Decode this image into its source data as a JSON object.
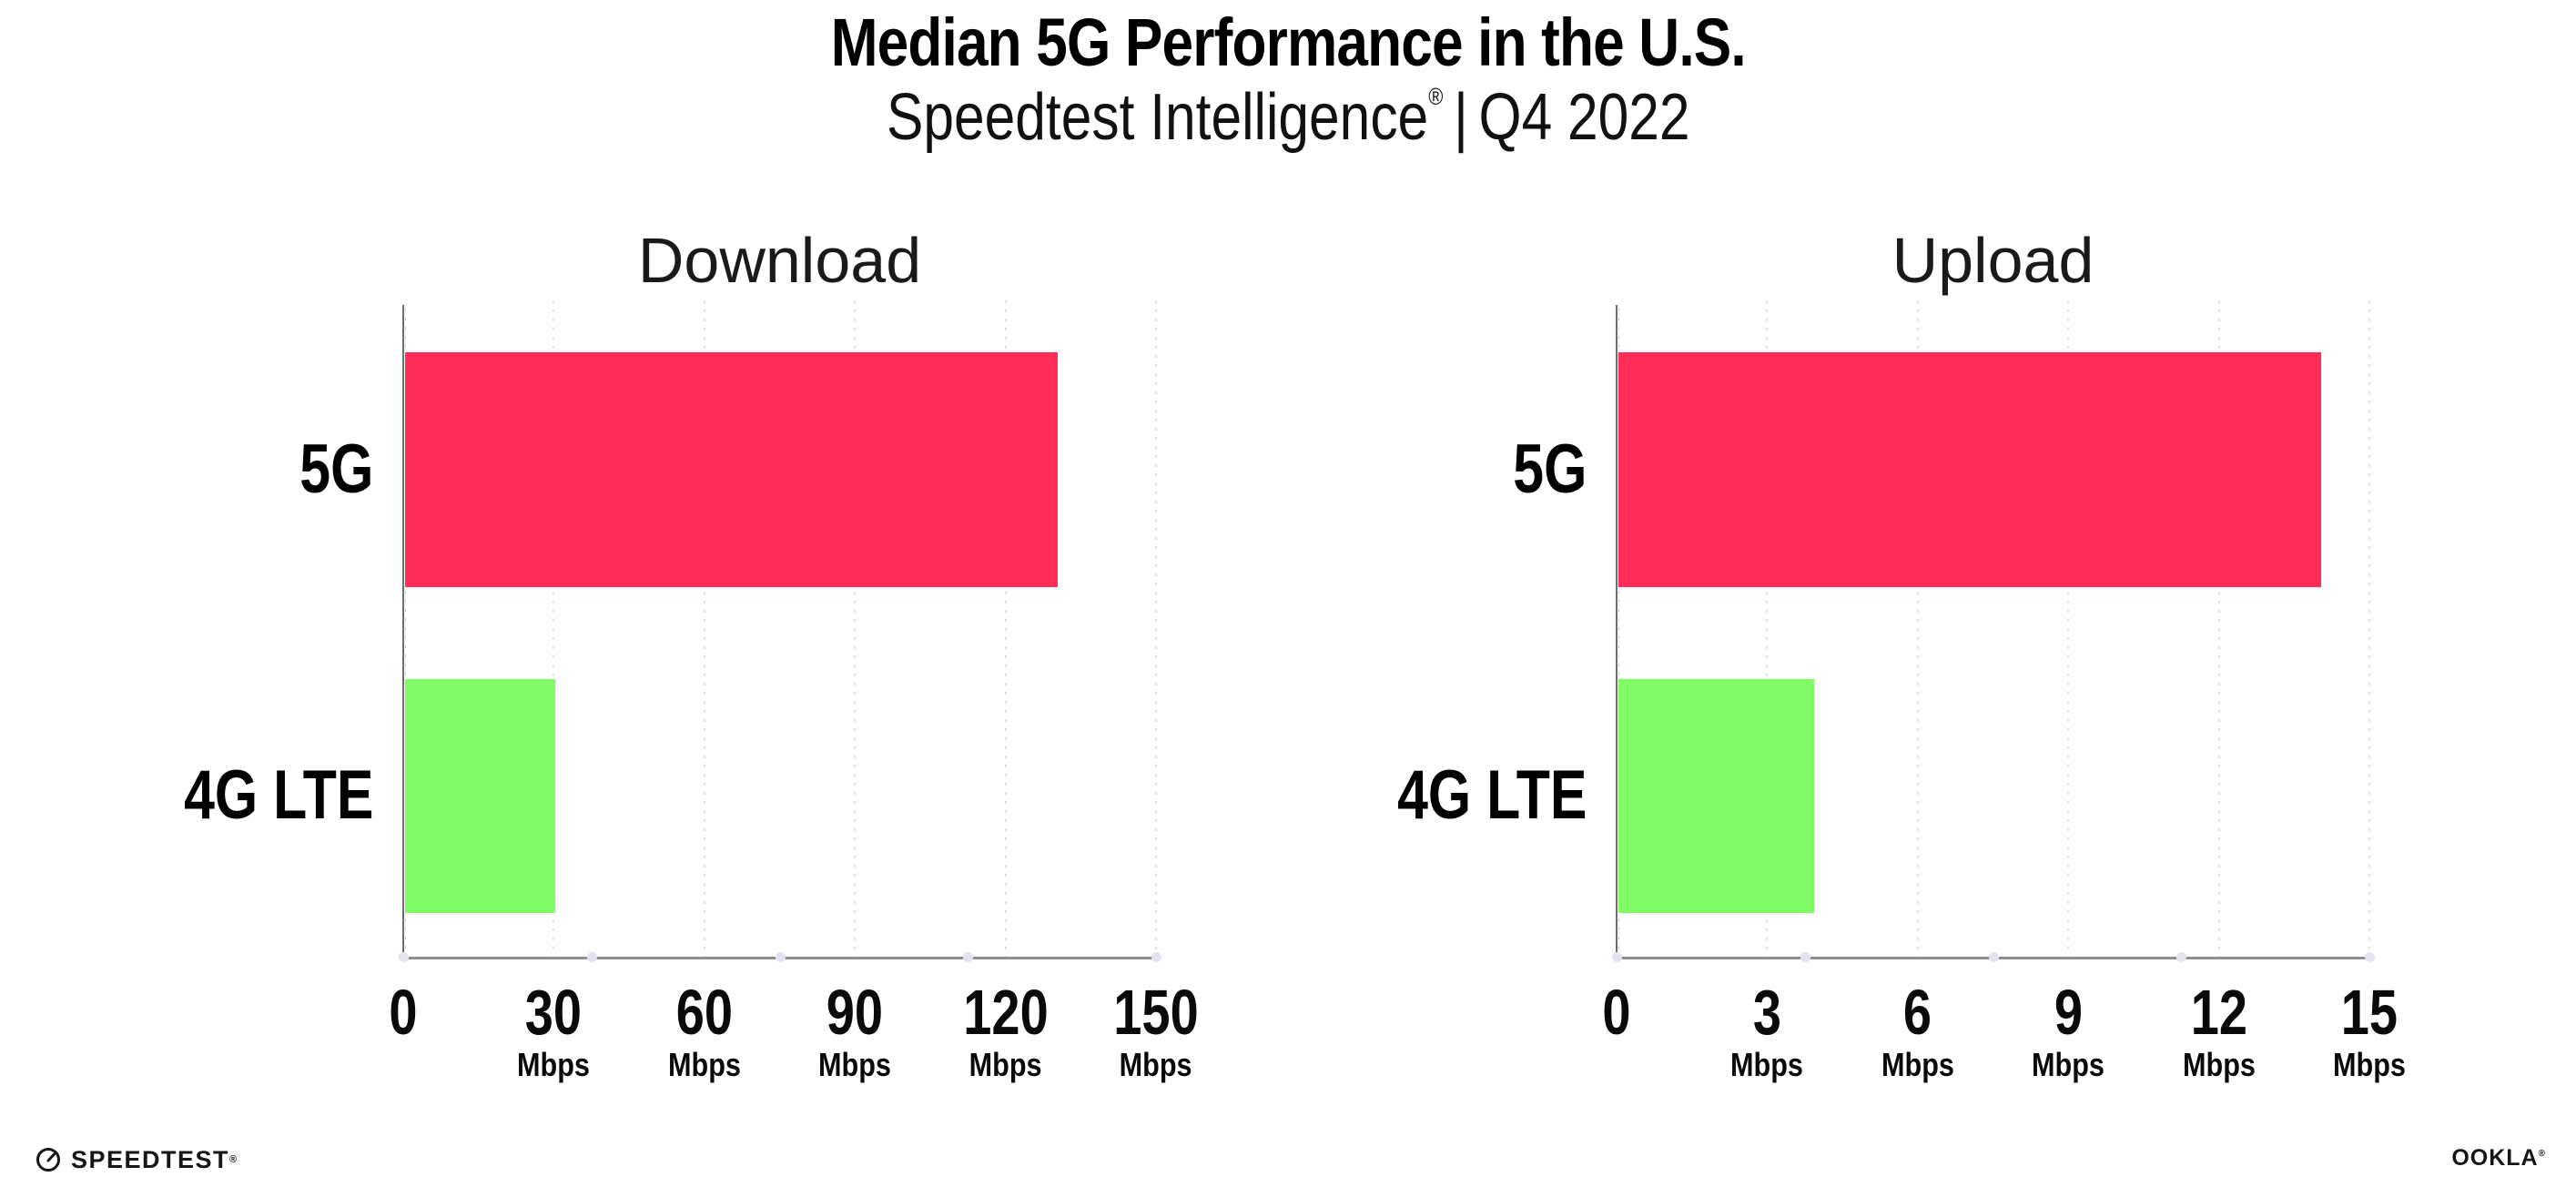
{
  "header": {
    "title": "Median 5G Performance in the U.S.",
    "subtitle": {
      "brand": "Speedtest Intelligence",
      "reg": "®",
      "sep": "|",
      "period": "Q4 2022"
    }
  },
  "chart_data": [
    {
      "type": "bar",
      "orientation": "horizontal",
      "title": "Download",
      "categories": [
        "5G",
        "4G LTE"
      ],
      "values": [
        130,
        30
      ],
      "unit": "Mbps",
      "xlim": [
        0,
        150
      ],
      "xticks": [
        0,
        30,
        60,
        90,
        120,
        150
      ],
      "bar_colors": [
        "#FF2D5A",
        "#80FB66"
      ],
      "grid": "dotted-vertical",
      "legend": "none"
    },
    {
      "type": "bar",
      "orientation": "horizontal",
      "title": "Upload",
      "categories": [
        "5G",
        "4G LTE"
      ],
      "values": [
        14,
        3.9
      ],
      "unit": "Mbps",
      "xlim": [
        0,
        15
      ],
      "xticks": [
        0,
        3,
        6,
        9,
        12,
        15
      ],
      "bar_colors": [
        "#FF2D5A",
        "#80FB66"
      ],
      "grid": "dotted-vertical",
      "legend": "none"
    }
  ],
  "footer": {
    "speedtest": {
      "label": "SPEEDTEST",
      "mark": "®"
    },
    "ookla": {
      "label": "OOKLA",
      "mark": "®"
    }
  },
  "colors": {
    "bar_5g": "#FF2D5A",
    "bar_4g_lte": "#80FB66",
    "x_axis": "#8f8f8f",
    "y_axis": "#6e6e6e",
    "gridline": "#e0e0ea",
    "title_text": "#000000",
    "heading_text": "#1a1a1a"
  }
}
